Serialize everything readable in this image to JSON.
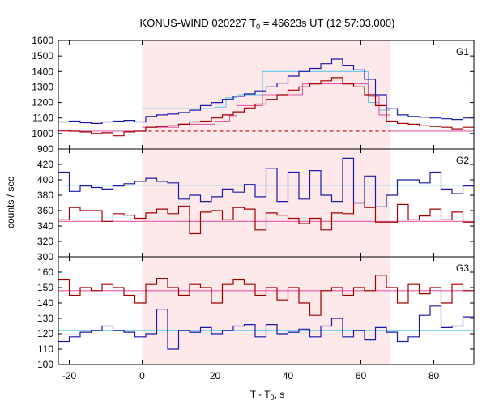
{
  "chart_data": {
    "type": "line",
    "title_main": "KONUS-WIND 020227 T",
    "title_sub": "0",
    "title_rest": " = 46623s UT (12:57:03.000)",
    "xlabel_main": "T - T",
    "xlabel_sub": "0",
    "xlabel_rest": ", s",
    "ylabel": "counts / sec",
    "xlim": [
      -23,
      91
    ],
    "xticks": [
      -20,
      0,
      20,
      40,
      60,
      80
    ],
    "xtick_labels": [
      "-20",
      "0",
      "20",
      "40",
      "60",
      "80"
    ],
    "highlight_interval": [
      0,
      68
    ],
    "colors": {
      "blue": "#1a1aa8",
      "red": "#a00000",
      "fit_cyan": "#5fc8e8",
      "fit_pink": "#e85aa8",
      "highlight": "#fde8ea"
    },
    "bin_edges": [
      -23,
      -20,
      -17,
      -14,
      -11,
      -8,
      -5,
      -2,
      1,
      4,
      7,
      10,
      13,
      16,
      19,
      22,
      25,
      28,
      31,
      34,
      37,
      40,
      43,
      46,
      49,
      52,
      55,
      58,
      61,
      64,
      67,
      70,
      73,
      76,
      79,
      82,
      85,
      88,
      91
    ],
    "panels": [
      {
        "label": "G1",
        "ylim": [
          900,
          1600
        ],
        "yticks": [
          900,
          1000,
          1100,
          1200,
          1300,
          1400,
          1500,
          1600
        ],
        "ytick_labels": [
          "900",
          "1000",
          "1100",
          "1200",
          "1300",
          "1400",
          "1500",
          "1600"
        ],
        "blue": [
          1075,
          1080,
          1070,
          1065,
          1075,
          1080,
          1085,
          1075,
          1110,
          1120,
          1125,
          1135,
          1150,
          1180,
          1200,
          1220,
          1240,
          1255,
          1275,
          1300,
          1325,
          1370,
          1400,
          1420,
          1450,
          1480,
          1440,
          1410,
          1350,
          1250,
          1160,
          1120,
          1110,
          1105,
          1100,
          1095,
          1090,
          1100
        ],
        "red": [
          1020,
          1015,
          1010,
          1000,
          1005,
          985,
          1010,
          1015,
          1040,
          1045,
          1050,
          1060,
          1075,
          1080,
          1100,
          1120,
          1140,
          1165,
          1190,
          1220,
          1250,
          1280,
          1300,
          1320,
          1340,
          1360,
          1320,
          1300,
          1250,
          1180,
          1080,
          1065,
          1060,
          1050,
          1045,
          1040,
          1030,
          1040
        ],
        "blue_fit": {
          "background": 1075,
          "burst": [
            [
              0,
              1160
            ],
            [
              10,
              1160
            ],
            [
              20,
              1170
            ],
            [
              23,
              1230
            ],
            [
              26,
              1250
            ],
            [
              33,
              1400
            ],
            [
              62,
              1400
            ],
            [
              62,
              1200
            ],
            [
              65,
              1150
            ],
            [
              68,
              1150
            ]
          ]
        },
        "red_fit": {
          "background": 1015,
          "burst": [
            [
              0,
              1040
            ],
            [
              10,
              1060
            ],
            [
              20,
              1080
            ],
            [
              24,
              1115
            ],
            [
              26,
              1180
            ],
            [
              33,
              1250
            ],
            [
              44,
              1320
            ],
            [
              58,
              1320
            ],
            [
              62,
              1240
            ],
            [
              65,
              1120
            ],
            [
              68,
              1080
            ]
          ]
        }
      },
      {
        "label": "G2",
        "ylim": [
          300,
          440
        ],
        "yticks": [
          300,
          320,
          340,
          360,
          380,
          400,
          420
        ],
        "ytick_labels": [
          "300",
          "320",
          "340",
          "360",
          "380",
          "400",
          "420"
        ],
        "blue": [
          410,
          385,
          392,
          390,
          388,
          392,
          395,
          398,
          402,
          398,
          396,
          375,
          380,
          372,
          378,
          388,
          384,
          394,
          378,
          415,
          372,
          410,
          375,
          412,
          380,
          372,
          428,
          370,
          405,
          365,
          380,
          400,
          400,
          396,
          410,
          388,
          382,
          392
        ],
        "red": [
          348,
          364,
          360,
          360,
          346,
          356,
          354,
          350,
          357,
          362,
          356,
          366,
          330,
          358,
          360,
          348,
          364,
          362,
          335,
          357,
          354,
          350,
          343,
          350,
          335,
          357,
          356,
          370,
          364,
          345,
          345,
          368,
          348,
          353,
          362,
          348,
          358,
          345
        ],
        "blue_fit": {
          "background": 393
        },
        "red_fit": {
          "background": 346
        }
      },
      {
        "label": "G3",
        "ylim": [
          100,
          170
        ],
        "yticks": [
          100,
          110,
          120,
          130,
          140,
          150,
          160
        ],
        "ytick_labels": [
          "100",
          "110",
          "120",
          "130",
          "140",
          "150",
          "160"
        ],
        "blue": [
          115,
          118,
          121,
          122,
          125,
          122,
          121,
          118,
          120,
          136,
          110,
          122,
          121,
          124,
          120,
          122,
          125,
          126,
          118,
          126,
          120,
          121,
          123,
          118,
          125,
          130,
          118,
          122,
          116,
          124,
          121,
          115,
          118,
          132,
          138,
          124,
          125,
          131
        ],
        "red": [
          155,
          145,
          150,
          148,
          152,
          150,
          145,
          140,
          152,
          156,
          150,
          145,
          152,
          150,
          140,
          152,
          155,
          152,
          145,
          150,
          142,
          150,
          140,
          132,
          148,
          150,
          145,
          150,
          148,
          158,
          150,
          140,
          152,
          146,
          150,
          140,
          152,
          148
        ],
        "blue_fit": {
          "background": 122
        },
        "red_fit": {
          "background": 148
        }
      }
    ]
  }
}
